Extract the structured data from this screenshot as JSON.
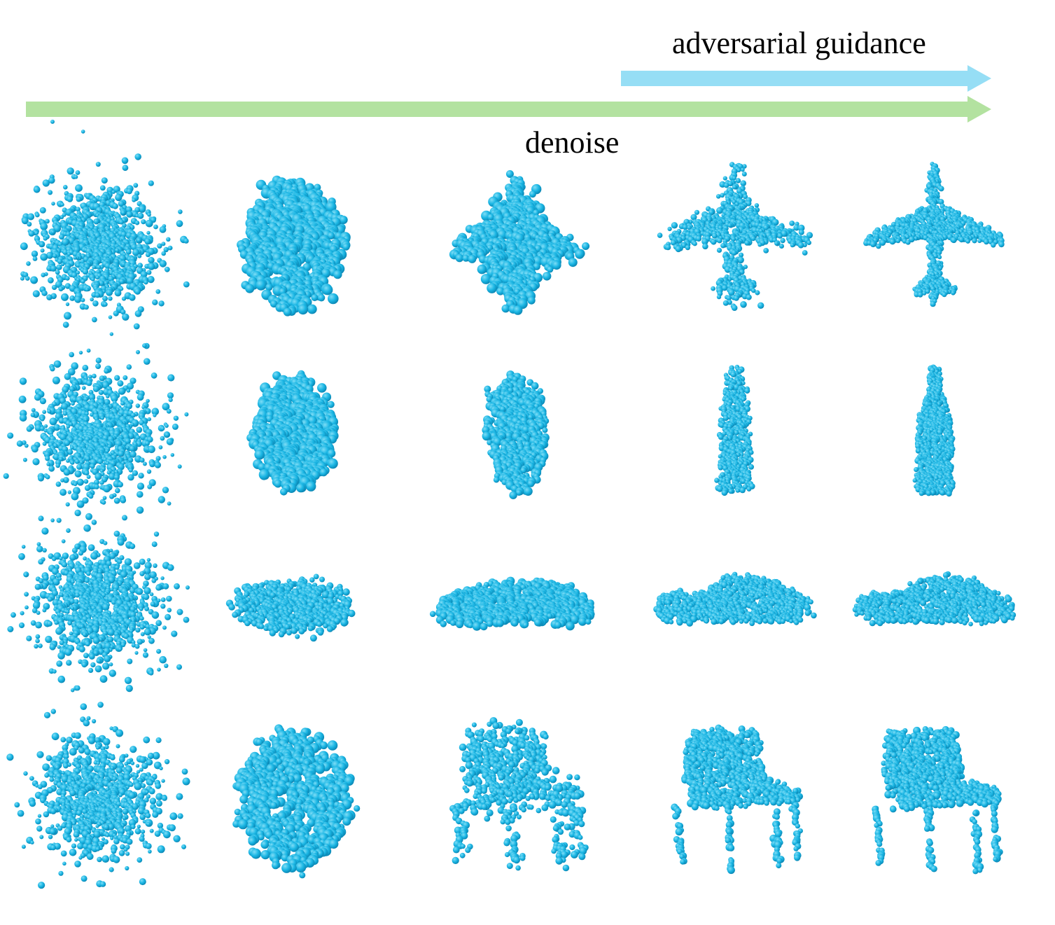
{
  "labels": {
    "adversarial_guidance": "adversarial guidance",
    "denoise": "denoise"
  },
  "colors": {
    "point": "#1AB6E4",
    "point_highlight": "#7FDDF6",
    "point_shadow": "#0B86B3",
    "denoise_arrow": "#B3E2A0",
    "guidance_arrow": "#96DEF5",
    "background": "#FFFFFF"
  },
  "grid": {
    "rows": [
      {
        "object": "airplane",
        "stages": [
          "noise",
          "blob",
          "diamond",
          "coarse-airplane",
          "airplane"
        ]
      },
      {
        "object": "bottle",
        "stages": [
          "noise",
          "blob",
          "ellipse",
          "coarse-bottle",
          "bottle"
        ]
      },
      {
        "object": "car",
        "stages": [
          "noise",
          "flat-blob",
          "coarse-car",
          "car",
          "car"
        ]
      },
      {
        "object": "chair",
        "stages": [
          "noise",
          "blob",
          "coarse-chair",
          "chair",
          "chair"
        ]
      }
    ]
  }
}
